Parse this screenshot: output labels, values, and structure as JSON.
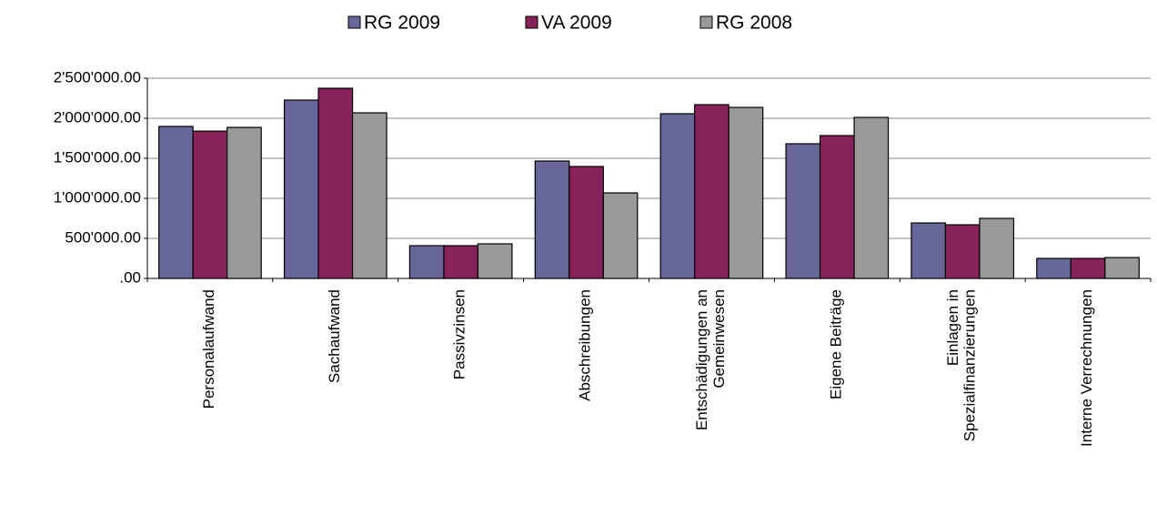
{
  "chart_data": {
    "type": "bar",
    "categories": [
      "Personalaufwand",
      "Sachaufwand",
      "Passivzinsen",
      "Abschreibungen",
      "Entschädigungen an\nGemeinwesen",
      "Eigene Beiträge",
      "Einlagen in\nSpezialfinanzierungen",
      "Interne Verrechnungen"
    ],
    "series": [
      {
        "name": "RG 2009",
        "color": "#666699",
        "values": [
          1898000,
          2227000,
          409000,
          1466000,
          2057000,
          1682000,
          693000,
          250000
        ]
      },
      {
        "name": "VA 2009",
        "color": "#88225a",
        "values": [
          1840000,
          2375000,
          409000,
          1398000,
          2170000,
          1784000,
          670000,
          250000
        ]
      },
      {
        "name": "RG 2008",
        "color": "#999999",
        "values": [
          1886000,
          2068000,
          432000,
          1068000,
          2136000,
          2011000,
          750000,
          261000
        ]
      }
    ],
    "ylim": [
      0,
      2500000
    ],
    "yticks": [
      {
        "value": 0,
        "label": ".00"
      },
      {
        "value": 500000,
        "label": "500'000.00"
      },
      {
        "value": 1000000,
        "label": "1'000'000.00"
      },
      {
        "value": 1500000,
        "label": "1'500'000.00"
      },
      {
        "value": 2000000,
        "label": "2'000'000.00"
      },
      {
        "value": 2500000,
        "label": "2'500'000.00"
      }
    ],
    "grid": true,
    "legend": "top"
  }
}
